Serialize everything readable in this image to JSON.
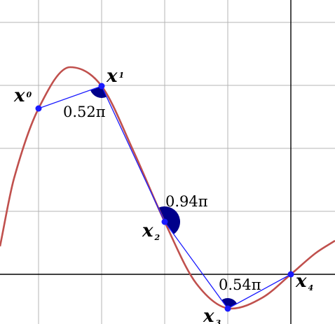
{
  "colors": {
    "curve": "#c0504d",
    "segment": "#1a1aff",
    "point": "#1a1aff",
    "angle_wedge": "#00008b",
    "grid": "#b4b4b4",
    "axis": "#000000",
    "text": "#000000"
  },
  "points": [
    {
      "id": "x0",
      "letter": "x",
      "subscript": "0"
    },
    {
      "id": "x1",
      "letter": "x",
      "subscript": "1"
    },
    {
      "id": "x2",
      "letter": "x",
      "subscript": "2"
    },
    {
      "id": "x3",
      "letter": "x",
      "subscript": "3"
    },
    {
      "id": "x4",
      "letter": "x",
      "subscript": "4"
    }
  ],
  "angles": [
    {
      "vertex": "x1",
      "label": "0.52π"
    },
    {
      "vertex": "x2",
      "label": "0.94π"
    },
    {
      "vertex": "x3",
      "label": "0.54π"
    }
  ]
}
